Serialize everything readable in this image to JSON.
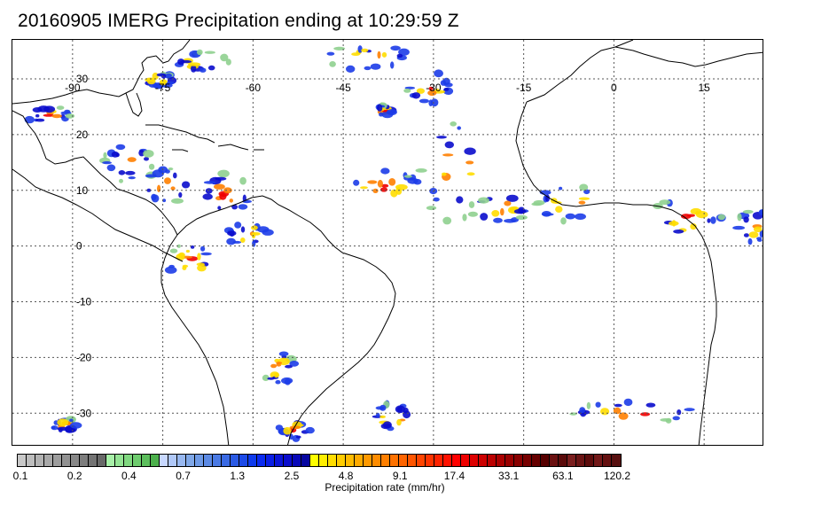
{
  "title": "20160905 IMERG Precipitation ending at 10:29:59 Z",
  "map": {
    "lon_labels": [
      "-90",
      "-75",
      "-60",
      "-45",
      "-30",
      "-15",
      "0",
      "15"
    ],
    "lat_labels": [
      "30",
      "20",
      "10",
      "0",
      "-10",
      "-20",
      "-30"
    ],
    "colorbar_ticks": [
      "0.1",
      "0.2",
      "0.4",
      "0.7",
      "1.3",
      "2.5",
      "4.8",
      "9.1",
      "17.4",
      "33.1",
      "63.1",
      "120.2"
    ],
    "colorbar_label": "Precipitation rate (mm/hr)",
    "colorbar_colors": [
      "#c8c8c8",
      "#bdbdbd",
      "#b2b2b2",
      "#a8a8a8",
      "#9d9d9d",
      "#929292",
      "#888888",
      "#7d7d7d",
      "#737373",
      "#686868",
      "#a8f0a8",
      "#94e494",
      "#80d880",
      "#6ecc6e",
      "#5cbe5c",
      "#4cb04c",
      "#c8d8ff",
      "#b0c8f8",
      "#98b8f0",
      "#80a8e8",
      "#6e9ae6",
      "#5c8ae4",
      "#4a7ae4",
      "#3a6ae4",
      "#2a5ae4",
      "#1c4ae8",
      "#0e3aec",
      "#0a2af0",
      "#0a1ee6",
      "#0a14d8",
      "#0a0ccc",
      "#0808b8",
      "#0606a0",
      "#ffff00",
      "#ffee00",
      "#ffdd00",
      "#ffcc00",
      "#ffbb00",
      "#ffaa00",
      "#ff9900",
      "#ff8c00",
      "#ff7f00",
      "#ff7200",
      "#ff6400",
      "#ff5500",
      "#ff4400",
      "#ff3300",
      "#ff2200",
      "#ff1100",
      "#ff0000",
      "#ee0000",
      "#dd0000",
      "#cc0000",
      "#bb0000",
      "#aa0000",
      "#990000",
      "#880000",
      "#770000",
      "#660000",
      "#560000",
      "#6a1010",
      "#5a0a0a",
      "#7a1e1e",
      "#6a1414",
      "#5c0c0c",
      "#721818",
      "#641010",
      "#581010"
    ],
    "colors": {
      "light": "#8fd08f",
      "blue": "#1c3ce8",
      "deep_blue": "#0a0ccc",
      "yellow": "#ffdd00",
      "orange": "#ff7f00",
      "red": "#ee0000"
    }
  }
}
